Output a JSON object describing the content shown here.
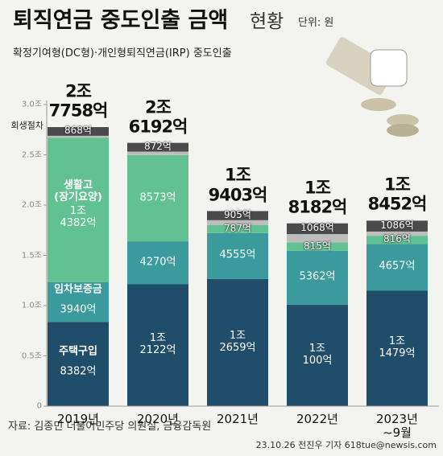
{
  "chart_data": {
    "type": "stacked_bar",
    "title": "퇴직연금 중도인출 금액",
    "title_light": "현황",
    "unit": "단위: 원",
    "subtitle": "확정기여형(DC형)·개인형퇴직연금(IRP) 중도인출",
    "source": "자료: 김종민 더불어민주당 의원실, 금융감독원",
    "credit": "23.10.26 전진우 기자 618tue@newsis.com",
    "categories": [
      "2019년",
      "2020년",
      "2021년",
      "2022년",
      "2023년\n~9월"
    ],
    "ylim": [
      0,
      3.0
    ],
    "yticks": [
      0,
      {
        "value": 0.5,
        "label": "0.5조"
      },
      {
        "value": 1.0,
        "label": "1.0조"
      },
      {
        "value": 1.5,
        "label": "1.5조"
      },
      {
        "value": 2.0,
        "label": "2.0조"
      },
      {
        "value": 2.5,
        "label": "2.5조"
      },
      {
        "value": 3.0,
        "label": "3.0조"
      }
    ],
    "grid": false,
    "series": [
      {
        "name": "주택구입",
        "color": "#1f4d6a",
        "values": [
          0.8382,
          1.2122,
          1.2659,
          1.01,
          1.1479
        ],
        "value_labels": [
          "8382억",
          "1조\n2122억",
          "1조\n2659억",
          "1조\n100억",
          "1조\n1479억"
        ]
      },
      {
        "name": "임차보증금",
        "color": "#3a9a9c",
        "values": [
          0.394,
          0.427,
          0.4555,
          0.5362,
          0.4657
        ],
        "value_labels": [
          "3940억",
          "4270억",
          "4555억",
          "5362억",
          "4657억"
        ]
      },
      {
        "name": "생활고\n(장기요양)",
        "color": "#62c193",
        "values": [
          1.4382,
          0.8573,
          0.0787,
          0.0815,
          0.0816
        ],
        "value_labels": [
          "1조\n4382억",
          "8573억",
          "787억",
          "815억",
          "816억"
        ]
      },
      {
        "color": "#bdbdbd",
        "values": [
          0.0186,
          0.0355,
          0.0497,
          0.0837,
          0.0414
        ]
      },
      {
        "name": "회생절차",
        "color": "#4b4b4b",
        "values": [
          0.0868,
          0.0872,
          0.0905,
          0.1068,
          0.1086
        ],
        "value_labels": [
          "868억",
          "872억",
          "905억",
          "1068억",
          "1086억"
        ]
      }
    ],
    "totals": {
      "values": [
        2.7758,
        2.6192,
        1.9403,
        1.8182,
        1.8452
      ],
      "value_labels": [
        "2조\n7758억",
        "2조\n6192억",
        "1조\n9403억",
        "1조\n8182억",
        "1조\n8452억"
      ]
    }
  }
}
